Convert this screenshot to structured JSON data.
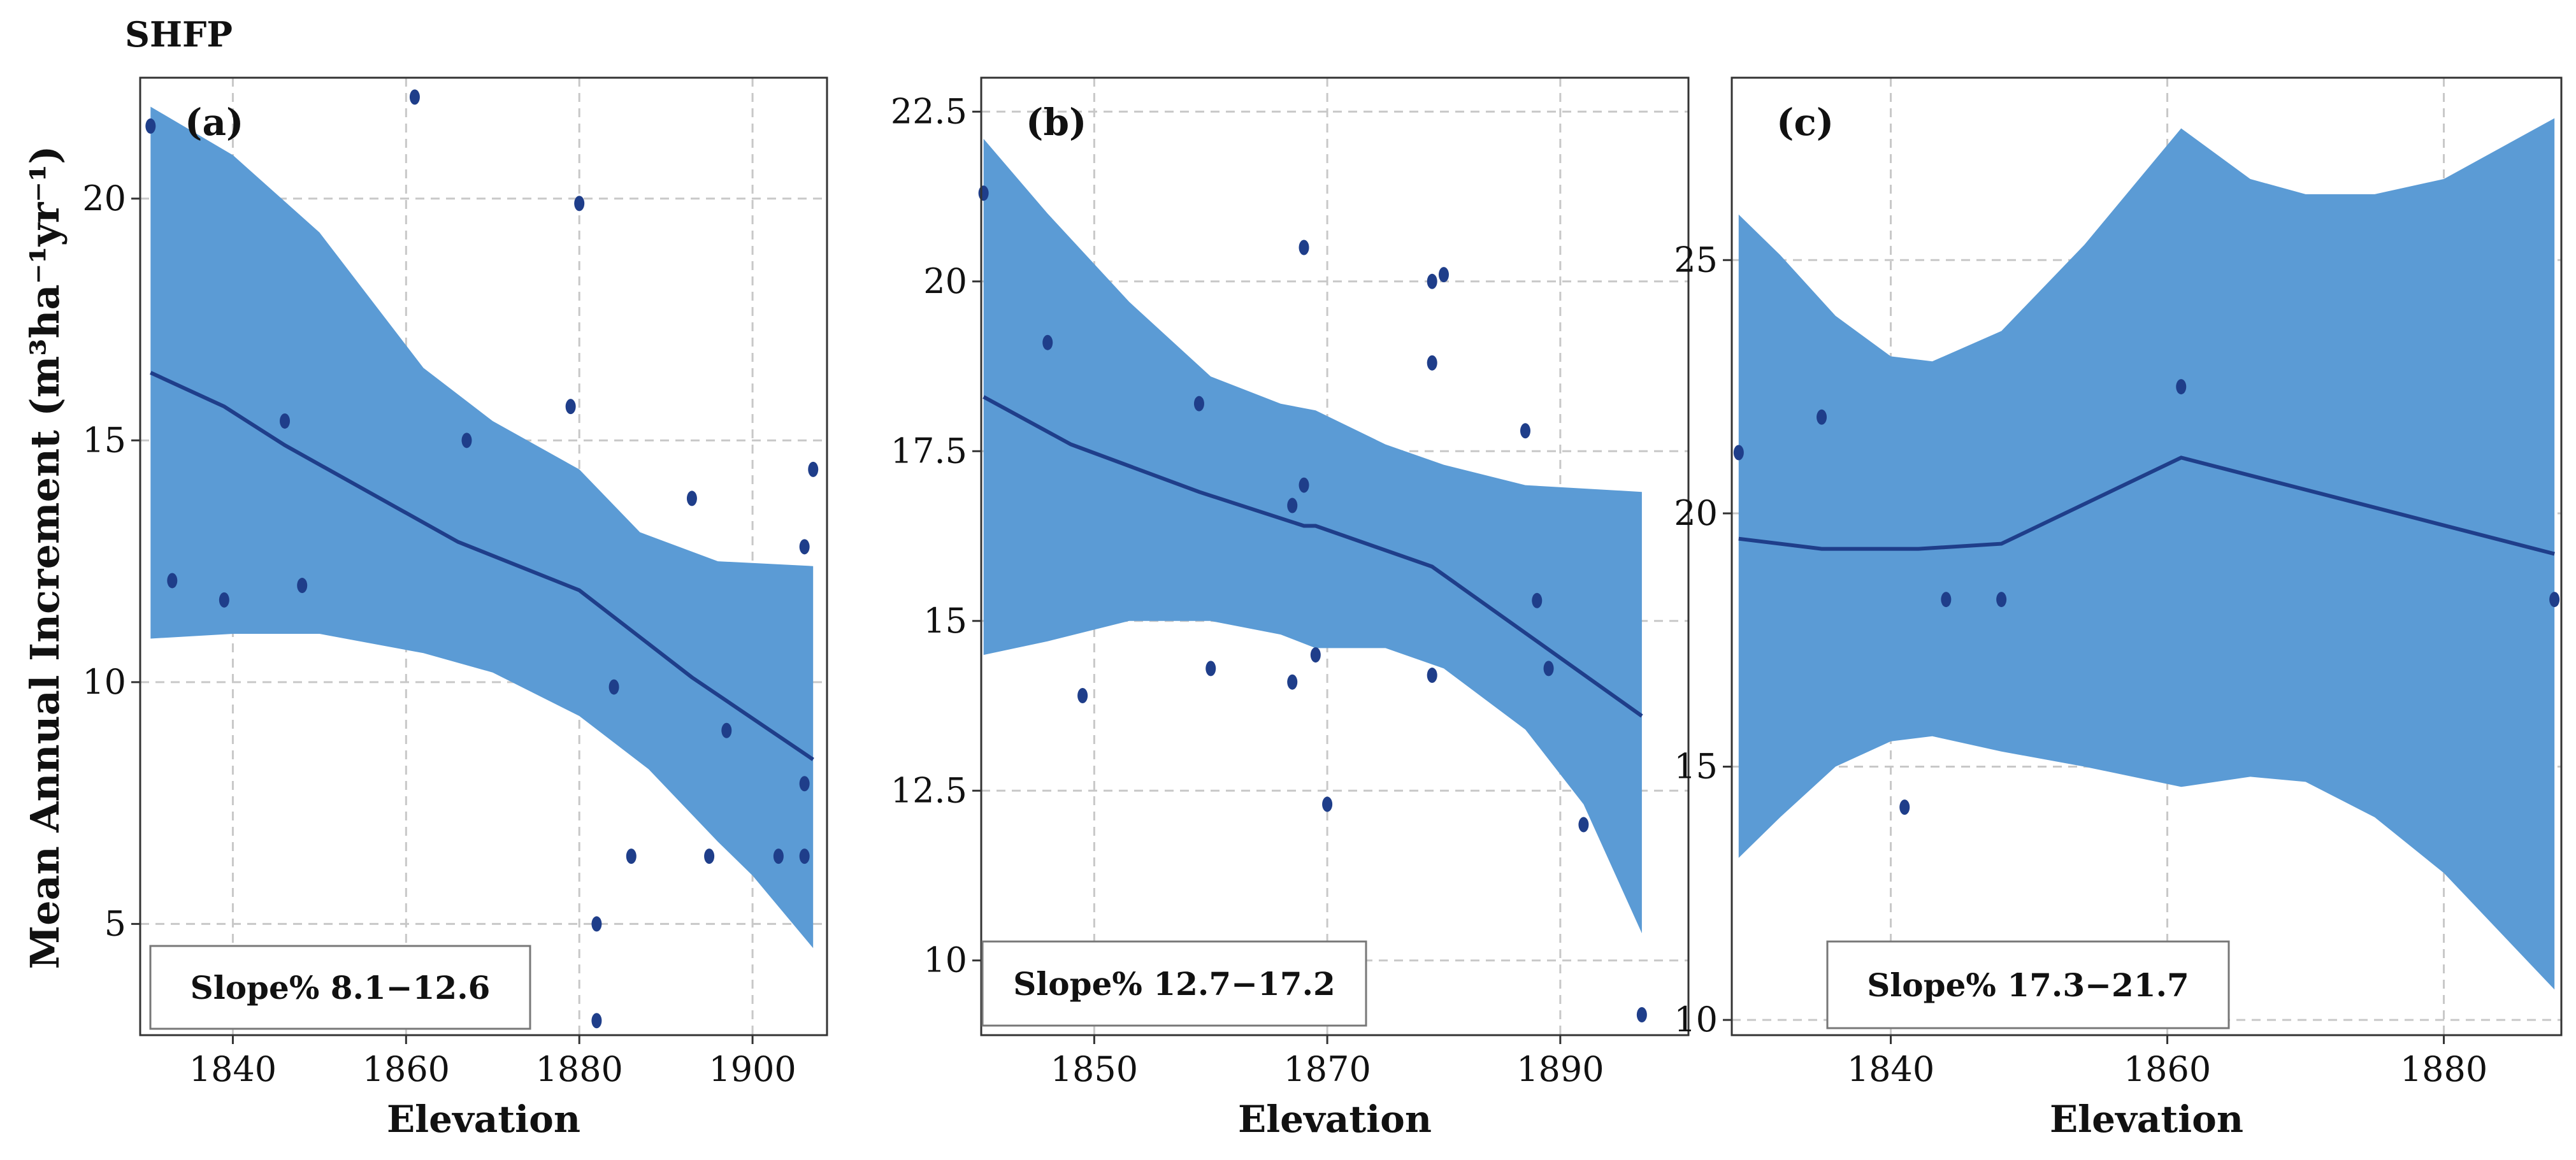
{
  "figure_title": "SHFP",
  "ylabel": "Mean Annual Increment (m³ha⁻¹yr⁻¹)",
  "colors": {
    "band": "#5B9BD5",
    "line": "#1F3E8A",
    "point": "#1F3E8A",
    "grid": "#c8c8c8",
    "axis": "#333333"
  },
  "chart_data": [
    {
      "type": "scatter",
      "panel_label": "(a)",
      "annotation": "Slope% 8.1−12.6",
      "xlabel": "Elevation",
      "xlim": [
        1829.3,
        1908.6
      ],
      "ylim": [
        2.7,
        22.5
      ],
      "xticks": [
        1840,
        1860,
        1880,
        1900
      ],
      "yticks": [
        5,
        10,
        15,
        20
      ],
      "points": [
        [
          1830.5,
          21.5
        ],
        [
          1833,
          12.1
        ],
        [
          1839,
          11.7
        ],
        [
          1846,
          15.4
        ],
        [
          1848,
          12.0
        ],
        [
          1861,
          22.1
        ],
        [
          1867,
          15.0
        ],
        [
          1879,
          15.7
        ],
        [
          1880,
          19.9
        ],
        [
          1882,
          5.0
        ],
        [
          1882,
          3.0
        ],
        [
          1884,
          9.9
        ],
        [
          1886,
          6.4
        ],
        [
          1893,
          13.8
        ],
        [
          1895,
          6.4
        ],
        [
          1897,
          9.0
        ],
        [
          1903,
          6.4
        ],
        [
          1906,
          12.8
        ],
        [
          1906,
          7.9
        ],
        [
          1906,
          6.4
        ],
        [
          1907,
          14.4
        ]
      ],
      "fit": [
        [
          1830.5,
          16.4
        ],
        [
          1839,
          15.7
        ],
        [
          1846,
          14.9
        ],
        [
          1866,
          12.9
        ],
        [
          1880,
          11.9
        ],
        [
          1893,
          10.1
        ],
        [
          1907,
          8.4
        ]
      ],
      "band_upper": [
        [
          1830.5,
          21.9
        ],
        [
          1840,
          20.9
        ],
        [
          1850,
          19.3
        ],
        [
          1862,
          16.5
        ],
        [
          1870,
          15.4
        ],
        [
          1880,
          14.4
        ],
        [
          1887,
          13.1
        ],
        [
          1896,
          12.5
        ],
        [
          1907,
          12.4
        ]
      ],
      "band_lower": [
        [
          1830.5,
          10.9
        ],
        [
          1840,
          11.0
        ],
        [
          1850,
          11.0
        ],
        [
          1862,
          10.6
        ],
        [
          1870,
          10.2
        ],
        [
          1880,
          9.3
        ],
        [
          1888,
          8.2
        ],
        [
          1896,
          6.7
        ],
        [
          1900,
          6.0
        ],
        [
          1907,
          4.5
        ]
      ]
    },
    {
      "type": "scatter",
      "panel_label": "(b)",
      "annotation": "Slope% 12.7−17.2",
      "xlabel": "Elevation",
      "xlim": [
        1840.3,
        1901.0
      ],
      "ylim": [
        8.9,
        23.0
      ],
      "xticks": [
        1850,
        1870,
        1890
      ],
      "yticks": [
        10,
        12.5,
        15,
        17.5,
        20,
        22.5
      ],
      "tick_labels_y": [
        "10",
        "12.5",
        "15",
        "17.5",
        "20",
        "22.5"
      ],
      "points": [
        [
          1840.5,
          21.3
        ],
        [
          1846,
          19.1
        ],
        [
          1849,
          13.9
        ],
        [
          1859,
          18.2
        ],
        [
          1860,
          14.3
        ],
        [
          1867,
          16.7
        ],
        [
          1867,
          14.1
        ],
        [
          1868,
          20.5
        ],
        [
          1868,
          17.0
        ],
        [
          1869,
          14.5
        ],
        [
          1870,
          12.3
        ],
        [
          1879,
          20.0
        ],
        [
          1879,
          18.8
        ],
        [
          1879,
          14.2
        ],
        [
          1880,
          20.1
        ],
        [
          1887,
          17.8
        ],
        [
          1888,
          15.3
        ],
        [
          1889,
          14.3
        ],
        [
          1892,
          12.0
        ],
        [
          1897,
          9.2
        ]
      ],
      "fit": [
        [
          1840.5,
          18.3
        ],
        [
          1848,
          17.6
        ],
        [
          1859,
          16.9
        ],
        [
          1868,
          16.4
        ],
        [
          1869,
          16.4
        ],
        [
          1879,
          15.8
        ],
        [
          1888,
          14.7
        ],
        [
          1897,
          13.6
        ]
      ],
      "band_upper": [
        [
          1840.5,
          22.1
        ],
        [
          1846,
          21.0
        ],
        [
          1853,
          19.7
        ],
        [
          1860,
          18.6
        ],
        [
          1866,
          18.2
        ],
        [
          1869,
          18.1
        ],
        [
          1875,
          17.6
        ],
        [
          1880,
          17.3
        ],
        [
          1887,
          17.0
        ],
        [
          1897,
          16.9
        ]
      ],
      "band_lower": [
        [
          1840.5,
          14.5
        ],
        [
          1846,
          14.7
        ],
        [
          1853,
          15.0
        ],
        [
          1860,
          15.0
        ],
        [
          1866,
          14.8
        ],
        [
          1869,
          14.6
        ],
        [
          1875,
          14.6
        ],
        [
          1880,
          14.3
        ],
        [
          1887,
          13.4
        ],
        [
          1892,
          12.3
        ],
        [
          1897,
          10.4
        ]
      ]
    },
    {
      "type": "scatter",
      "panel_label": "(c)",
      "annotation": "Slope% 17.3−21.7",
      "xlabel": "Elevation",
      "xlim": [
        1828.5,
        1888.5
      ],
      "ylim": [
        9.7,
        28.6
      ],
      "xticks": [
        1840,
        1860,
        1880
      ],
      "yticks": [
        10,
        15,
        20,
        25
      ],
      "points": [
        [
          1829,
          21.2
        ],
        [
          1835,
          21.9
        ],
        [
          1841,
          14.2
        ],
        [
          1844,
          18.3
        ],
        [
          1848,
          18.3
        ],
        [
          1861,
          22.5
        ],
        [
          1888,
          18.3
        ]
      ],
      "fit": [
        [
          1829,
          19.5
        ],
        [
          1835,
          19.3
        ],
        [
          1842,
          19.3
        ],
        [
          1848,
          19.4
        ],
        [
          1861,
          21.1
        ],
        [
          1888,
          19.2
        ]
      ],
      "band_upper": [
        [
          1829,
          25.9
        ],
        [
          1832,
          25.1
        ],
        [
          1836,
          23.9
        ],
        [
          1840,
          23.1
        ],
        [
          1843,
          23.0
        ],
        [
          1848,
          23.6
        ],
        [
          1854,
          25.3
        ],
        [
          1861,
          27.6
        ],
        [
          1866,
          26.6
        ],
        [
          1870,
          26.3
        ],
        [
          1875,
          26.3
        ],
        [
          1880,
          26.6
        ],
        [
          1888,
          27.8
        ]
      ],
      "band_lower": [
        [
          1829,
          13.2
        ],
        [
          1832,
          14.0
        ],
        [
          1836,
          15.0
        ],
        [
          1840,
          15.5
        ],
        [
          1843,
          15.6
        ],
        [
          1848,
          15.3
        ],
        [
          1854,
          15.0
        ],
        [
          1861,
          14.6
        ],
        [
          1866,
          14.8
        ],
        [
          1870,
          14.7
        ],
        [
          1875,
          14.0
        ],
        [
          1880,
          12.9
        ],
        [
          1888,
          10.6
        ]
      ]
    }
  ]
}
